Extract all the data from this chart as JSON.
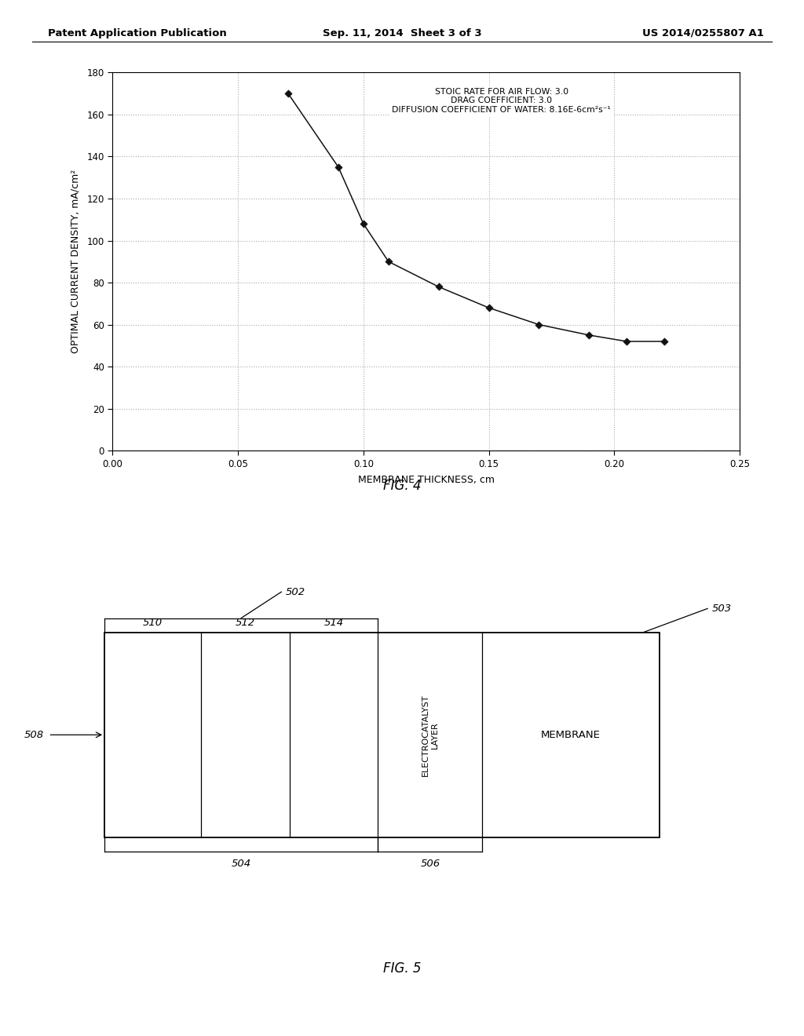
{
  "header_left": "Patent Application Publication",
  "header_center": "Sep. 11, 2014  Sheet 3 of 3",
  "header_right": "US 2014/0255807 A1",
  "fig4": {
    "x_data": [
      0.07,
      0.09,
      0.1,
      0.11,
      0.13,
      0.15,
      0.17,
      0.19,
      0.205,
      0.22
    ],
    "y_data": [
      170,
      135,
      108,
      90,
      78,
      68,
      60,
      55,
      52,
      52
    ],
    "xlabel": "MEMBRANE THICKNESS, cm",
    "ylabel": "OPTIMAL CURRENT DENSITY, mA/cm²",
    "xlim": [
      0,
      0.25
    ],
    "ylim": [
      0,
      180
    ],
    "xticks": [
      0,
      0.05,
      0.1,
      0.15,
      0.2,
      0.25
    ],
    "yticks": [
      0,
      20,
      40,
      60,
      80,
      100,
      120,
      140,
      160,
      180
    ],
    "annotation_line1": "STOIC RATE FOR AIR FLOW: 3.0",
    "annotation_line2": "DRAG COEFFICIENT: 3.0",
    "annotation_line3": "DIFFUSION COEFFICIENT OF WATER: 8.16E-6cm²s⁻¹",
    "fig_label": "FIG. 4",
    "line_color": "#111111",
    "marker_color": "#111111",
    "grid_color": "#aaaaaa"
  },
  "fig5": {
    "fig_label": "FIG. 5",
    "label_502": "502",
    "label_503": "503",
    "label_504": "504",
    "label_506": "506",
    "label_508": "508",
    "label_510": "510",
    "label_512": "512",
    "label_514": "514",
    "text_electrocatalyst": "ELECTROCATALYST\nLAYER",
    "text_membrane": "MEMBRANE"
  },
  "bg_color": "#ffffff",
  "text_color": "#000000"
}
